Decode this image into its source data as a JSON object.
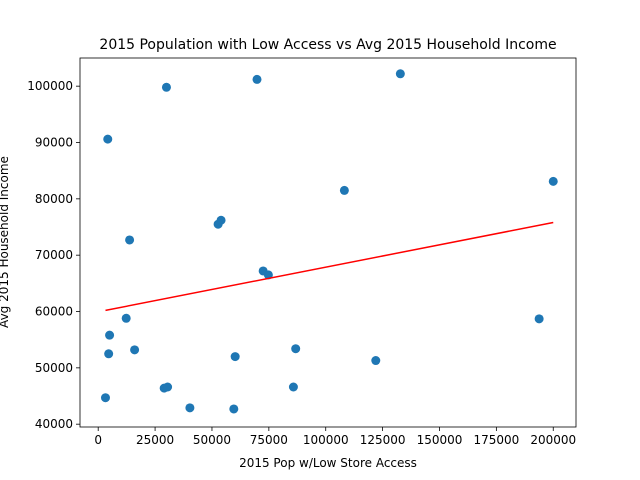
{
  "chart_data": {
    "type": "scatter",
    "title": "2015 Population with Low Access vs Avg 2015 Household Income",
    "xlabel": "2015 Pop w/Low Store Access",
    "ylabel": "Avg 2015 Household Income",
    "xlim": [
      -8000,
      210000
    ],
    "ylim": [
      39500,
      105000
    ],
    "xticks": [
      0,
      25000,
      50000,
      75000,
      100000,
      125000,
      150000,
      175000,
      200000
    ],
    "xtick_labels": [
      "0",
      "25000",
      "50000",
      "75000",
      "100000",
      "125000",
      "150000",
      "175000",
      "200000"
    ],
    "yticks": [
      40000,
      50000,
      60000,
      70000,
      80000,
      90000,
      100000
    ],
    "ytick_labels": [
      "40000",
      "50000",
      "60000",
      "70000",
      "80000",
      "90000",
      "100000"
    ],
    "grid": false,
    "point_color": "#1f77b4",
    "trend_color": "#ff0000",
    "points": [
      {
        "x": 3200,
        "y": 44700
      },
      {
        "x": 4200,
        "y": 90600
      },
      {
        "x": 4600,
        "y": 52500
      },
      {
        "x": 5000,
        "y": 55800
      },
      {
        "x": 12300,
        "y": 58800
      },
      {
        "x": 13800,
        "y": 72700
      },
      {
        "x": 16000,
        "y": 53200
      },
      {
        "x": 29000,
        "y": 46400
      },
      {
        "x": 30500,
        "y": 46600
      },
      {
        "x": 30000,
        "y": 99800
      },
      {
        "x": 40300,
        "y": 42900
      },
      {
        "x": 52700,
        "y": 75500
      },
      {
        "x": 54000,
        "y": 76200
      },
      {
        "x": 59600,
        "y": 42700
      },
      {
        "x": 60200,
        "y": 52000
      },
      {
        "x": 69800,
        "y": 101200
      },
      {
        "x": 72500,
        "y": 67200
      },
      {
        "x": 74800,
        "y": 66500
      },
      {
        "x": 85800,
        "y": 46600
      },
      {
        "x": 86800,
        "y": 53400
      },
      {
        "x": 108200,
        "y": 81500
      },
      {
        "x": 122000,
        "y": 51300
      },
      {
        "x": 132800,
        "y": 102200
      },
      {
        "x": 193800,
        "y": 58700
      },
      {
        "x": 200000,
        "y": 83100
      }
    ],
    "trendline": {
      "x": [
        3200,
        200000
      ],
      "y": [
        60200,
        75800
      ]
    }
  }
}
